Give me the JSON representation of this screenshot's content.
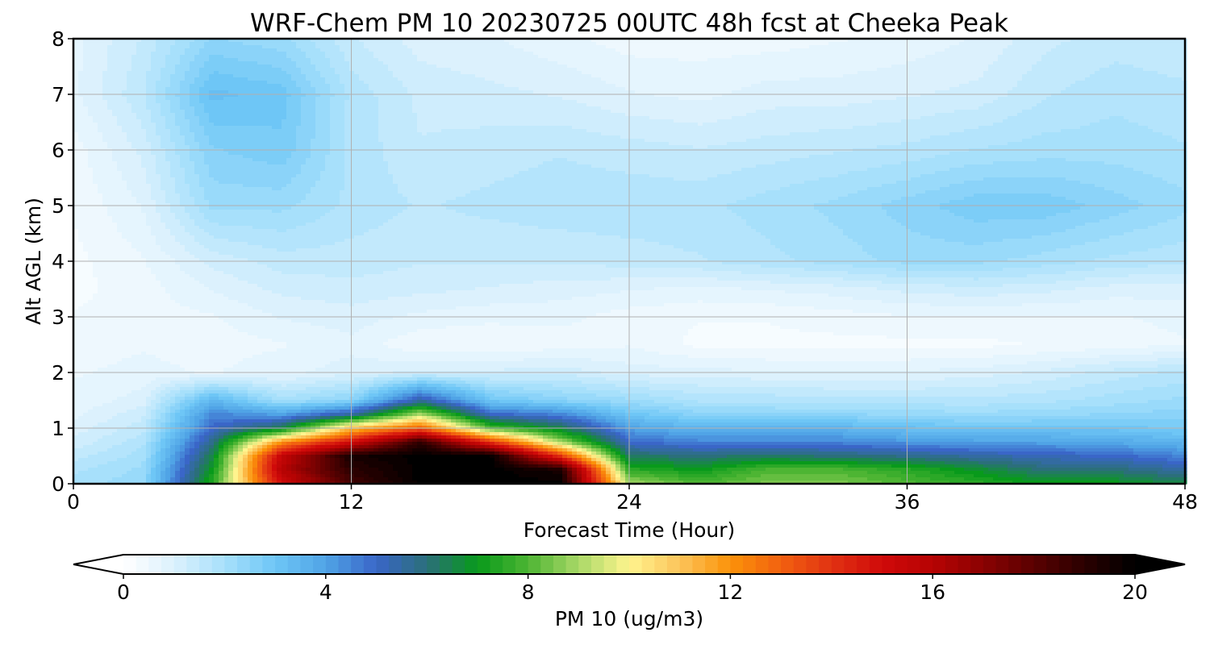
{
  "chart_data": {
    "type": "heatmap",
    "title": "WRF-Chem PM 10  20230725 00UTC 48h fcst at Cheeka Peak",
    "xlabel": "Forecast Time (Hour)",
    "ylabel": "Alt AGL (km)",
    "xlim": [
      0,
      48
    ],
    "ylim": [
      0,
      8
    ],
    "xticks": [
      "0",
      "12",
      "24",
      "36",
      "48"
    ],
    "yticks": [
      "0",
      "1",
      "2",
      "3",
      "4",
      "5",
      "6",
      "7",
      "8"
    ],
    "grid": true,
    "colorbar": {
      "label": "PM 10  (ug/m3)",
      "range": [
        0,
        20
      ],
      "ticks": [
        "0",
        "4",
        "8",
        "12",
        "16",
        "20"
      ],
      "extend": "both",
      "stops": [
        {
          "v": 0,
          "c": "#ffffff"
        },
        {
          "v": 1,
          "c": "#dcf1fd"
        },
        {
          "v": 2,
          "c": "#a7e0fb"
        },
        {
          "v": 3,
          "c": "#6ec6f6"
        },
        {
          "v": 4,
          "c": "#50a4e6"
        },
        {
          "v": 5,
          "c": "#3a66c8"
        },
        {
          "v": 6,
          "c": "#2b6f7a"
        },
        {
          "v": 7,
          "c": "#089a1b"
        },
        {
          "v": 8,
          "c": "#4db533"
        },
        {
          "v": 9,
          "c": "#a9d867"
        },
        {
          "v": 10,
          "c": "#fff48e"
        },
        {
          "v": 11,
          "c": "#fcc45a"
        },
        {
          "v": 12,
          "c": "#fb9209"
        },
        {
          "v": 13,
          "c": "#f26110"
        },
        {
          "v": 14,
          "c": "#e13212"
        },
        {
          "v": 15,
          "c": "#d00a0a"
        },
        {
          "v": 16,
          "c": "#b60303"
        },
        {
          "v": 17,
          "c": "#8a0202"
        },
        {
          "v": 18,
          "c": "#5a0101"
        },
        {
          "v": 19,
          "c": "#2a0000"
        },
        {
          "v": 20,
          "c": "#000000"
        }
      ]
    },
    "hours": [
      0,
      3,
      6,
      9,
      12,
      15,
      18,
      21,
      24,
      27,
      30,
      33,
      36,
      39,
      42,
      45,
      48
    ],
    "altitudes_km": [
      0,
      0.25,
      0.5,
      0.75,
      1,
      1.25,
      1.5,
      2,
      2.5,
      3,
      3.5,
      4,
      5,
      6,
      7,
      8
    ],
    "pm10": [
      [
        2.0,
        2.3,
        7.5,
        15.0,
        18.5,
        20.0,
        20.0,
        20.0,
        9.0,
        8.0,
        8.5,
        8.5,
        8.0,
        7.5,
        7.0,
        7.0,
        6.5
      ],
      [
        1.8,
        2.2,
        7.0,
        16.0,
        19.0,
        20.0,
        20.0,
        19.5,
        7.5,
        7.0,
        8.0,
        8.0,
        7.5,
        6.8,
        6.0,
        6.0,
        5.5
      ],
      [
        1.5,
        2.0,
        6.5,
        15.5,
        19.5,
        20.0,
        20.0,
        14.0,
        6.2,
        6.0,
        6.2,
        6.0,
        5.8,
        5.5,
        5.2,
        5.0,
        4.5
      ],
      [
        1.2,
        1.8,
        5.8,
        12.0,
        15.0,
        19.0,
        14.0,
        9.0,
        5.0,
        4.5,
        4.5,
        4.5,
        4.2,
        4.0,
        4.0,
        3.8,
        3.5
      ],
      [
        1.0,
        1.5,
        5.0,
        6.5,
        11.0,
        13.0,
        8.0,
        6.5,
        4.0,
        3.5,
        3.5,
        3.5,
        3.2,
        3.0,
        3.0,
        3.0,
        2.8
      ],
      [
        0.8,
        1.3,
        4.5,
        4.0,
        5.5,
        9.0,
        5.0,
        4.5,
        3.0,
        2.5,
        2.4,
        2.4,
        2.3,
        2.2,
        2.3,
        2.4,
        2.5
      ],
      [
        0.7,
        1.0,
        3.5,
        2.0,
        2.5,
        5.5,
        3.0,
        2.5,
        2.2,
        1.8,
        1.8,
        1.7,
        1.7,
        1.7,
        1.8,
        2.0,
        2.2
      ],
      [
        0.6,
        0.7,
        0.6,
        0.8,
        1.0,
        1.2,
        1.2,
        1.3,
        1.0,
        1.0,
        0.9,
        0.9,
        0.9,
        1.0,
        1.2,
        1.5,
        1.7
      ],
      [
        0.5,
        0.6,
        0.5,
        0.6,
        0.8,
        0.4,
        0.4,
        0.5,
        0.6,
        0.3,
        0.3,
        0.3,
        0.3,
        0.3,
        0.4,
        0.5,
        0.6
      ],
      [
        0.4,
        0.5,
        0.6,
        0.9,
        1.0,
        0.8,
        0.7,
        0.7,
        0.5,
        0.4,
        0.4,
        0.5,
        0.6,
        0.6,
        0.6,
        0.6,
        0.7
      ],
      [
        0.3,
        0.5,
        0.9,
        1.2,
        1.3,
        1.2,
        1.1,
        1.0,
        0.9,
        0.8,
        0.9,
        1.0,
        1.2,
        1.3,
        1.2,
        1.0,
        1.0
      ],
      [
        0.3,
        0.6,
        1.2,
        1.5,
        1.5,
        1.4,
        1.4,
        1.4,
        1.5,
        1.6,
        1.8,
        2.0,
        2.2,
        2.2,
        2.0,
        1.8,
        1.7
      ],
      [
        0.4,
        0.9,
        2.2,
        2.2,
        1.8,
        1.6,
        1.7,
        1.8,
        1.8,
        1.8,
        2.0,
        2.2,
        2.5,
        2.8,
        2.8,
        2.5,
        2.2
      ],
      [
        0.5,
        1.2,
        2.6,
        2.8,
        1.8,
        1.4,
        1.5,
        1.6,
        1.5,
        1.4,
        1.5,
        1.6,
        1.7,
        1.9,
        2.0,
        2.0,
        1.9
      ],
      [
        0.8,
        1.6,
        3.2,
        3.0,
        1.8,
        1.3,
        1.2,
        1.1,
        0.9,
        0.8,
        1.0,
        1.0,
        1.1,
        1.2,
        1.6,
        1.8,
        1.7
      ],
      [
        0.8,
        1.4,
        2.4,
        2.2,
        1.4,
        1.0,
        0.9,
        0.7,
        0.5,
        0.5,
        0.5,
        0.6,
        0.7,
        0.9,
        1.3,
        1.5,
        1.4
      ]
    ]
  }
}
